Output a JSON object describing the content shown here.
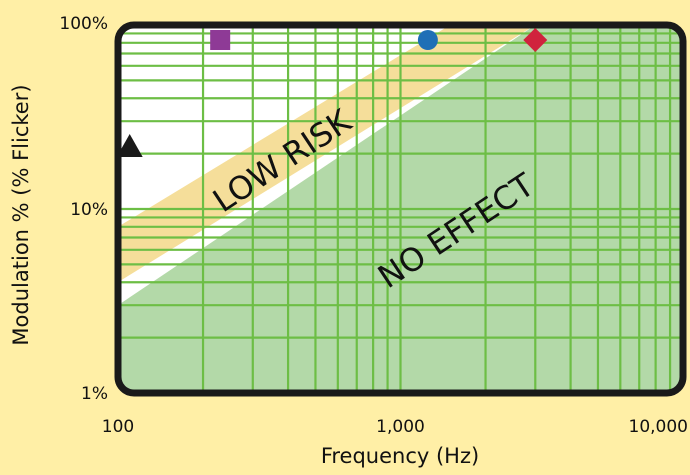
{
  "chart_data": {
    "type": "scatter",
    "title": "",
    "xlabel": "Frequency (Hz)",
    "ylabel": "Modulation % (% Flicker)",
    "xscale": "log",
    "yscale": "log",
    "xlim": [
      100,
      10000
    ],
    "ylim": [
      1,
      100
    ],
    "grid": true,
    "x_ticks": [
      {
        "value": 100,
        "label": "100"
      },
      {
        "value": 1000,
        "label": "1,000"
      },
      {
        "value": 10000,
        "label": "10,000"
      }
    ],
    "y_ticks": [
      {
        "value": 1,
        "label": "1%"
      },
      {
        "value": 10,
        "label": "10%"
      },
      {
        "value": 100,
        "label": "100%"
      }
    ],
    "regions": [
      {
        "label": "LOW RISK",
        "color": "#F5DE9A",
        "lower_boundary": [
          [
            100,
            4.0
          ],
          [
            3000,
            100
          ]
        ],
        "upper_boundary": [
          [
            100,
            8.0
          ],
          [
            1500,
            100
          ]
        ]
      },
      {
        "label": "NO EFFECT",
        "color": "#B3D9A8",
        "upper_boundary": [
          [
            100,
            3.0
          ],
          [
            3000,
            100
          ]
        ]
      }
    ],
    "points": [
      {
        "x": 110,
        "y": 22,
        "marker": "triangle",
        "color": "#1A1A1A"
      },
      {
        "x": 230,
        "y": 100,
        "marker": "square",
        "color": "#8E3A96"
      },
      {
        "x": 1250,
        "y": 100,
        "marker": "circle",
        "color": "#1F6FB6"
      },
      {
        "x": 3000,
        "y": 100,
        "marker": "diamond",
        "color": "#D0223D"
      }
    ],
    "colors": {
      "background": "#FFEFA6",
      "plot_background": "#FFFFFF",
      "grid": "#6DBE45",
      "frame": "#1A1A1A"
    }
  }
}
